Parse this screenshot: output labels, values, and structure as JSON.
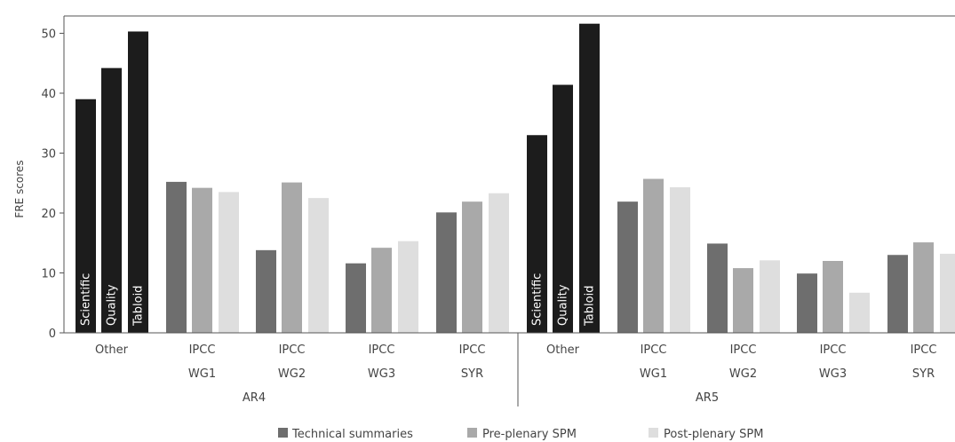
{
  "chart_data": {
    "type": "bar",
    "ylabel": "FRE scores",
    "ylim": [
      0,
      50
    ],
    "yticks": [
      "0",
      "10",
      "20",
      "30",
      "40",
      "50"
    ],
    "grid": false,
    "legend_position": "bottom",
    "colors": {
      "other": "#1c1c1c",
      "Technical summaries": "#6e6e6e",
      "Pre-plenary SPM": "#a9a9a9",
      "Post-plenary SPM": "#dedede"
    },
    "series": [
      {
        "name": "Technical summaries"
      },
      {
        "name": "Pre-plenary SPM"
      },
      {
        "name": "Post-plenary SPM"
      }
    ],
    "groups": [
      {
        "label": "AR4",
        "categories": [
          {
            "line1": "Other",
            "line2": "",
            "bars": [
              {
                "value": 39,
                "label": "Scientific",
                "series": "other"
              },
              {
                "value": 44.2,
                "label": "Quality",
                "series": "other"
              },
              {
                "value": 50.3,
                "label": "Tabloid",
                "series": "other"
              }
            ]
          },
          {
            "line1": "IPCC",
            "line2": "WG1",
            "bars": [
              {
                "value": 25.2,
                "series": "Technical summaries"
              },
              {
                "value": 24.2,
                "series": "Pre-plenary SPM"
              },
              {
                "value": 23.5,
                "series": "Post-plenary SPM"
              }
            ]
          },
          {
            "line1": "IPCC",
            "line2": "WG2",
            "bars": [
              {
                "value": 13.8,
                "series": "Technical summaries"
              },
              {
                "value": 25.1,
                "series": "Pre-plenary SPM"
              },
              {
                "value": 22.5,
                "series": "Post-plenary SPM"
              }
            ]
          },
          {
            "line1": "IPCC",
            "line2": "WG3",
            "bars": [
              {
                "value": 11.6,
                "series": "Technical summaries"
              },
              {
                "value": 14.2,
                "series": "Pre-plenary SPM"
              },
              {
                "value": 15.3,
                "series": "Post-plenary SPM"
              }
            ]
          },
          {
            "line1": "IPCC",
            "line2": "SYR",
            "bars": [
              {
                "value": 20.1,
                "series": "Technical summaries"
              },
              {
                "value": 21.9,
                "series": "Pre-plenary SPM"
              },
              {
                "value": 23.3,
                "series": "Post-plenary SPM"
              }
            ]
          }
        ]
      },
      {
        "label": "AR5",
        "categories": [
          {
            "line1": "Other",
            "line2": "",
            "bars": [
              {
                "value": 33,
                "label": "Scientific",
                "series": "other"
              },
              {
                "value": 41.4,
                "label": "Quality",
                "series": "other"
              },
              {
                "value": 51.6,
                "label": "Tabloid",
                "series": "other"
              }
            ]
          },
          {
            "line1": "IPCC",
            "line2": "WG1",
            "bars": [
              {
                "value": 21.9,
                "series": "Technical summaries"
              },
              {
                "value": 25.7,
                "series": "Pre-plenary SPM"
              },
              {
                "value": 24.3,
                "series": "Post-plenary SPM"
              }
            ]
          },
          {
            "line1": "IPCC",
            "line2": "WG2",
            "bars": [
              {
                "value": 14.9,
                "series": "Technical summaries"
              },
              {
                "value": 10.8,
                "series": "Pre-plenary SPM"
              },
              {
                "value": 12.1,
                "series": "Post-plenary SPM"
              }
            ]
          },
          {
            "line1": "IPCC",
            "line2": "WG3",
            "bars": [
              {
                "value": 9.9,
                "series": "Technical summaries"
              },
              {
                "value": 12,
                "series": "Pre-plenary SPM"
              },
              {
                "value": 6.7,
                "series": "Post-plenary SPM"
              }
            ]
          },
          {
            "line1": "IPCC",
            "line2": "SYR",
            "bars": [
              {
                "value": 13,
                "series": "Technical summaries"
              },
              {
                "value": 15.1,
                "series": "Pre-plenary SPM"
              },
              {
                "value": 13.2,
                "series": "Post-plenary SPM"
              }
            ]
          }
        ]
      }
    ]
  }
}
